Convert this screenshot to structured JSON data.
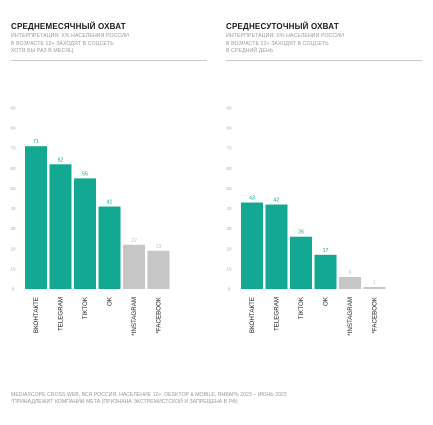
{
  "colors": {
    "highlight": "#12a892",
    "muted": "#c6c6c6",
    "axis_text": "#b0b0b0",
    "label_dark": "#1a1a1a"
  },
  "footer": {
    "line1": "MEDIASCOPE CROSS WEB, ВСЯ РОССИЯ, НАСЕЛЕНИЕ 12+, DESKTOP & MOBILE, ЯНВАРЬ 2023 – ИЮНЬ 2023",
    "line2": "*ПРИНАДЛЕЖИТ КОМПАНИИ МЕТА (ПРИЗНАНА ЭКСТРЕМИСТСКОЙ И ЗАПРЕЩЕНА В РФ)"
  },
  "chart_data": [
    {
      "type": "bar",
      "title": "СРЕДНЕМЕСЯЧНЫЙ ОХВАТ",
      "subtitle": [
        "ИНТЕРПРЕТАЦИЯ: X% НАСЕЛЕНИЯ РОССИИ",
        "В ВОЗРАСТЕ 12+ ЗАХОДЯТ В СОЦСЕТЬ",
        "ХОТЯ БЫ РАЗ В МЕСЯЦ"
      ],
      "categories": [
        "ВКОНТАКТЕ",
        "TELEGRAM",
        "TIKTOK",
        "OK",
        "*INSTAGRAM",
        "*FACEBOOK"
      ],
      "values": [
        71,
        62,
        55,
        41,
        22,
        19
      ],
      "highlight": [
        true,
        true,
        true,
        true,
        false,
        false
      ],
      "yticks": [
        0,
        10,
        20,
        30,
        40,
        50,
        60,
        70,
        80,
        90
      ],
      "ylim": [
        0,
        90
      ],
      "grid": false
    },
    {
      "type": "bar",
      "title": "СРЕДНЕСУТОЧНЫЙ ОХВАТ",
      "subtitle": [
        "ИНТЕРПРЕТАЦИЯ: X% НАСЕЛЕНИЯ РОССИИ",
        "В ВОЗРАСТЕ 12+ ЗАХОДЯТ В СОЦСЕТЬ",
        "В СРЕДНИЙ ДЕНЬ"
      ],
      "categories": [
        "ВКОНТАКТЕ",
        "TELEGRAM",
        "TIKTOK",
        "OK",
        "*INSTAGRAM",
        "*FACEBOOK"
      ],
      "values": [
        43,
        42,
        26,
        17,
        6,
        1
      ],
      "highlight": [
        true,
        true,
        true,
        true,
        false,
        false
      ],
      "yticks": [
        0,
        10,
        20,
        30,
        40,
        50,
        60,
        70,
        80,
        90
      ],
      "ylim": [
        0,
        90
      ],
      "grid": false
    }
  ]
}
